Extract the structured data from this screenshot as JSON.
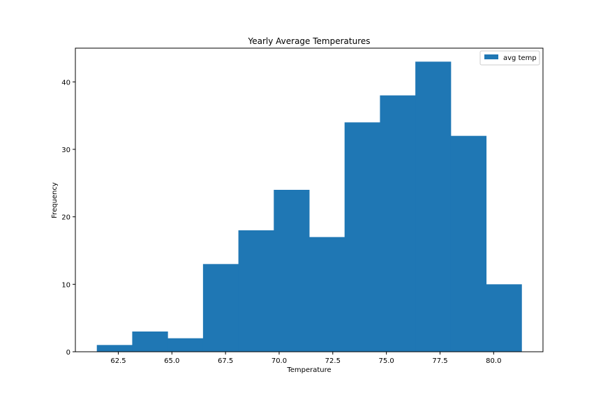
{
  "chart_data": {
    "type": "bar",
    "title": "Yearly Average Temperatures",
    "xlabel": "Temperature",
    "ylabel": "Frequency",
    "bin_edges": [
      61.5,
      63.15,
      64.8,
      66.45,
      68.1,
      69.75,
      71.4,
      73.05,
      74.7,
      76.35,
      78.0,
      79.65,
      81.3
    ],
    "series": [
      {
        "name": "avg temp",
        "values": [
          1,
          3,
          2,
          13,
          18,
          24,
          17,
          34,
          38,
          43,
          32,
          10
        ]
      }
    ],
    "xlim": [
      60.5,
      82.3
    ],
    "ylim": [
      0,
      45
    ],
    "xticks": [
      "62.5",
      "65.0",
      "67.5",
      "70.0",
      "72.5",
      "75.0",
      "77.5",
      "80.0"
    ],
    "yticks": [
      "0",
      "10",
      "20",
      "30",
      "40"
    ],
    "grid": false,
    "legend_position": "top-right",
    "colors": {
      "bar": "#1f77b4",
      "axes": "#000000"
    }
  }
}
